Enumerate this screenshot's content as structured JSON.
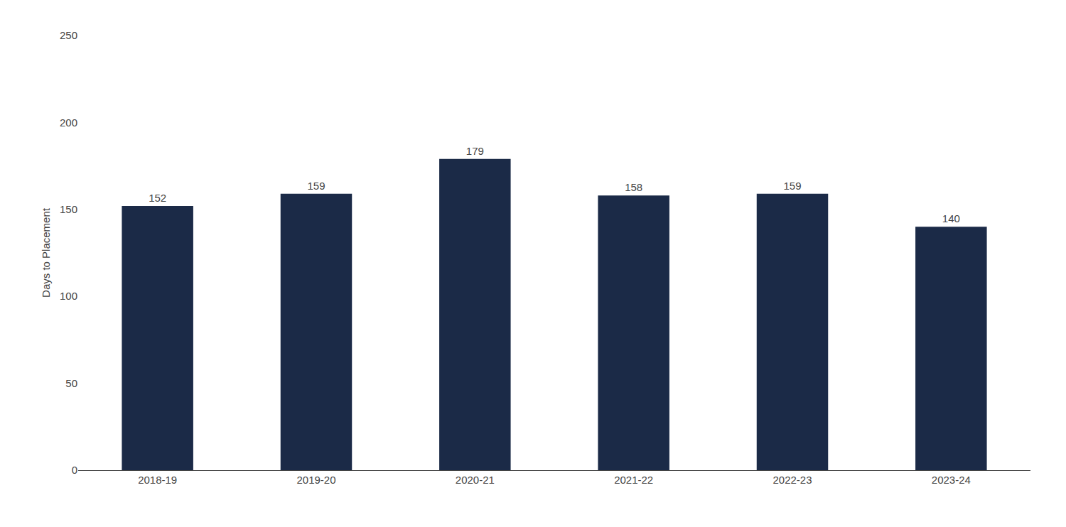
{
  "chart_data": {
    "type": "bar",
    "categories": [
      "2018-19",
      "2019-20",
      "2020-21",
      "2021-22",
      "2022-23",
      "2023-24"
    ],
    "values": [
      152,
      159,
      179,
      158,
      159,
      140
    ],
    "color": "#1b2a47",
    "ylabel": "Days to Placement",
    "ylim": [
      0,
      250
    ],
    "yticks": [
      0,
      50,
      100,
      150,
      200,
      250
    ],
    "grid": false,
    "data_labels": true
  }
}
